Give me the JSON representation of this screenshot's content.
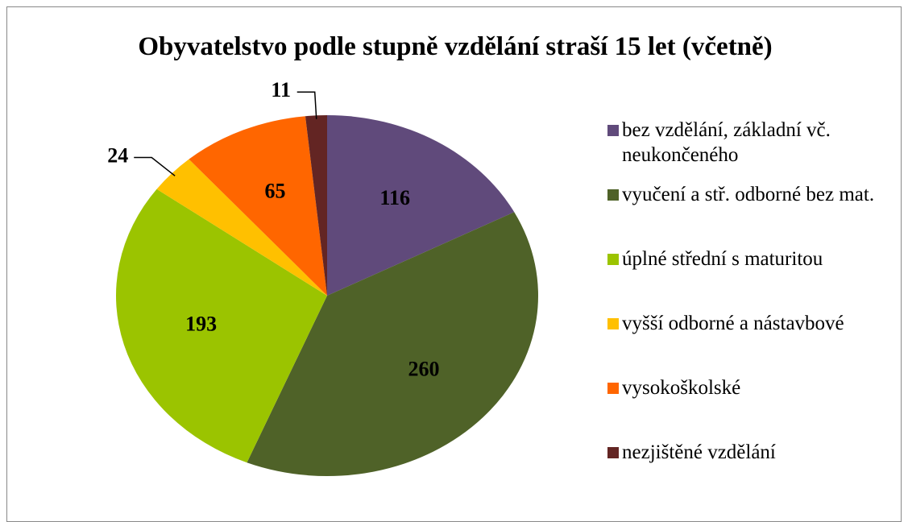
{
  "chart_data": {
    "type": "pie",
    "title": "Obyvatelstvo podle stupně vzdělání straší 15 let (včetně)",
    "categories": [
      "bez vzdělání, základní vč. neukončeného",
      "vyučení a stř. odborné bez mat.",
      "úplné střední s maturitou",
      "vyšší odborné a nástavbové",
      "vysokoškolské",
      "nezjištěné vzdělání"
    ],
    "values": [
      116,
      260,
      193,
      24,
      65,
      11
    ],
    "colors": [
      "#604a7b",
      "#4f6228",
      "#9bc400",
      "#ffc000",
      "#ff6600",
      "#632523"
    ],
    "legend": "right"
  }
}
